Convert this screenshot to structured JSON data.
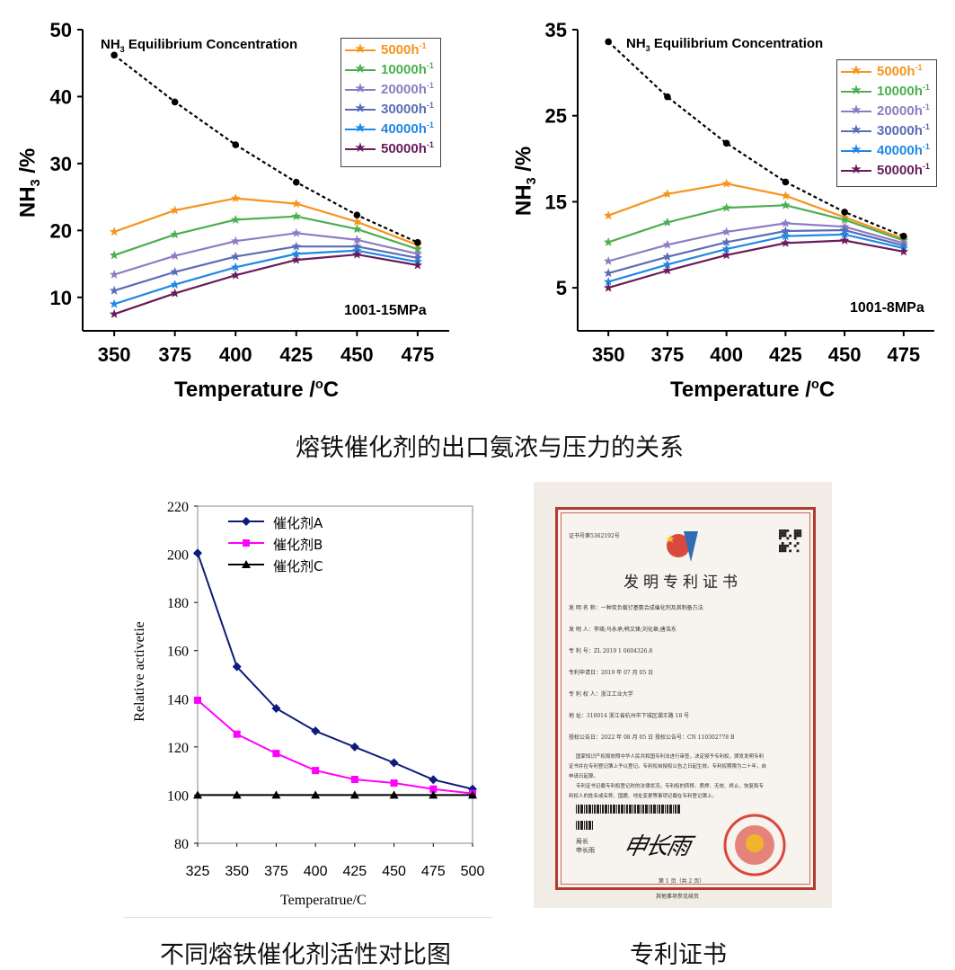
{
  "charts": {
    "left": {
      "annotation_title": "NH3 Equilibrium Concentration",
      "pressure_label": "1001-15MPa",
      "ylabel": "NH3 /%",
      "xlabel": "Temperature /oC",
      "ylim": [
        5,
        50
      ],
      "yticks": [
        10,
        20,
        30,
        40,
        50
      ],
      "xticks": [
        350,
        375,
        400,
        425,
        450,
        475
      ]
    },
    "right": {
      "annotation_title": "NH3 Equilibrium Concentration",
      "pressure_label": "1001-8MPa",
      "ylabel": "NH3 /%",
      "xlabel": "Temperature /oC",
      "ylim": [
        0,
        35
      ],
      "yticks": [
        5,
        15,
        25,
        35
      ],
      "xticks": [
        350,
        375,
        400,
        425,
        450,
        475
      ]
    },
    "bottom": {
      "ylabel": "Relative activetie",
      "xlabel": "Temperatrue/C",
      "ylim": [
        80,
        220
      ],
      "yticks": [
        80,
        100,
        120,
        140,
        160,
        180,
        200,
        220
      ],
      "xticks": [
        325,
        350,
        375,
        400,
        425,
        450,
        475,
        500
      ]
    }
  },
  "captions": {
    "top": "熔铁催化剂的出口氨浓与压力的关系",
    "bottom_left": "不同熔铁催化剂活性对比图",
    "bottom_right": "专利证书"
  },
  "certificate": {
    "number": "证书号第5362192号",
    "title": "发明专利证书",
    "lines": [
      "发 明 名 称：一种炭负载钌基氨合成催化剂及其制备方法",
      "发   明   人：李瑛;马永承;韩文锋;刘化章;唐浩东",
      "专   利   号：ZL 2019 1 0604326.8",
      "专利申请日：2019 年 07 月 05 日",
      "专 利 权 人：浙江工业大学",
      "地       址：310014 浙江省杭州市下城区潮王路 18 号",
      "授权公告日：2022 年 08 月 05 日          授权公告号：CN 110302778 B"
    ],
    "body": [
      "国家知识产权局依照中华人民共和国专利法进行审查，决定授予专利权，颁发发明专利",
      "证书并在专利登记簿上予以登记。专利权自授权公告之日起生效。专利权期限为二十年，自",
      "申请日起算。",
      "专利证书记载专利权登记时的法律状况。专利权的转移、质押、无效、终止、恢复和专",
      "利权人的姓名或名称、国籍、地址变更等事项记载在专利登记簿上。"
    ],
    "sign_role_1": "局长",
    "sign_role_2": "申长雨",
    "signature": "申长雨",
    "page": "第 1 页（共 2 页）",
    "footer": "其他事项参见续页"
  },
  "chart_data": [
    {
      "type": "line",
      "title": "NH3 Equilibrium Concentration",
      "annotation": "1001-15MPa",
      "xlabel": "Temperature /oC",
      "ylabel": "NH3 /%",
      "x": [
        350,
        375,
        400,
        425,
        450,
        475
      ],
      "ylim": [
        5,
        50
      ],
      "legend_position": "top-right",
      "equilibrium": [
        46.2,
        39.2,
        32.8,
        27.2,
        22.3,
        18.2
      ],
      "series": [
        {
          "name": "5000h-1",
          "color": "#f7941d",
          "values": [
            19.8,
            23.0,
            24.8,
            24.0,
            21.3,
            17.8
          ]
        },
        {
          "name": "10000h-1",
          "color": "#4caf50",
          "values": [
            16.3,
            19.4,
            21.6,
            22.1,
            20.2,
            17.2
          ]
        },
        {
          "name": "20000h-1",
          "color": "#8e7cc3",
          "values": [
            13.4,
            16.2,
            18.4,
            19.6,
            18.6,
            16.5
          ]
        },
        {
          "name": "30000h-1",
          "color": "#5b6cb5",
          "values": [
            11.0,
            13.8,
            16.1,
            17.6,
            17.6,
            15.9
          ]
        },
        {
          "name": "40000h-1",
          "color": "#1e88e5",
          "values": [
            9.0,
            11.9,
            14.5,
            16.5,
            17.0,
            15.3
          ]
        },
        {
          "name": "50000h-1",
          "color": "#6a1b5a",
          "values": [
            7.5,
            10.6,
            13.3,
            15.6,
            16.4,
            14.8
          ]
        }
      ]
    },
    {
      "type": "line",
      "title": "NH3 Equilibrium Concentration",
      "annotation": "1001-8MPa",
      "xlabel": "Temperature /oC",
      "ylabel": "NH3 /%",
      "x": [
        350,
        375,
        400,
        425,
        450,
        475
      ],
      "ylim": [
        0,
        35
      ],
      "legend_position": "top-right",
      "equilibrium": [
        33.6,
        27.2,
        21.8,
        17.3,
        13.8,
        11.0
      ],
      "series": [
        {
          "name": "5000h-1",
          "color": "#f7941d",
          "values": [
            13.4,
            15.9,
            17.1,
            15.7,
            13.2,
            10.7
          ]
        },
        {
          "name": "10000h-1",
          "color": "#4caf50",
          "values": [
            10.3,
            12.6,
            14.3,
            14.6,
            12.9,
            10.5
          ]
        },
        {
          "name": "20000h-1",
          "color": "#8e7cc3",
          "values": [
            8.1,
            10.0,
            11.5,
            12.5,
            12.1,
            10.2
          ]
        },
        {
          "name": "30000h-1",
          "color": "#5b6cb5",
          "values": [
            6.7,
            8.6,
            10.3,
            11.6,
            11.7,
            9.9
          ]
        },
        {
          "name": "40000h-1",
          "color": "#1e88e5",
          "values": [
            5.7,
            7.7,
            9.5,
            11.0,
            11.2,
            9.6
          ]
        },
        {
          "name": "50000h-1",
          "color": "#6a1b5a",
          "values": [
            5.0,
            7.0,
            8.8,
            10.2,
            10.5,
            9.2
          ]
        }
      ]
    },
    {
      "type": "line",
      "xlabel": "Temperatrue/C",
      "ylabel": "Relative activetie",
      "x": [
        325,
        350,
        375,
        400,
        425,
        450,
        475,
        500
      ],
      "ylim": [
        80,
        220
      ],
      "legend_position": "top-left",
      "series": [
        {
          "name": "催化剂A",
          "color": "#0d1b7a",
          "marker": "diamond",
          "values": [
            200.5,
            153.3,
            136.0,
            126.6,
            120.0,
            113.4,
            106.4,
            102.5
          ]
        },
        {
          "name": "催化剂B",
          "color": "#ff00ff",
          "marker": "square",
          "values": [
            139.4,
            125.3,
            117.3,
            110.2,
            106.5,
            105.0,
            102.5,
            100.7
          ]
        },
        {
          "name": "催化剂C",
          "color": "#000000",
          "marker": "triangle",
          "values": [
            100,
            100,
            100,
            100,
            100,
            100,
            100,
            100
          ]
        }
      ]
    }
  ]
}
